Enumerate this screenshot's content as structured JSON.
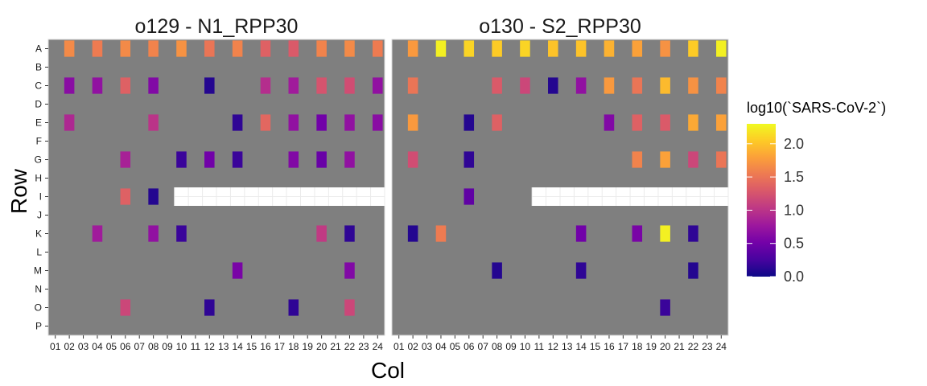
{
  "chart_data": {
    "type": "heatmap",
    "xlabel": "Col",
    "ylabel": "Row",
    "legend_title": "log10(`SARS-CoV-2`)",
    "legend_position": "right",
    "color_scale": {
      "name": "plasma",
      "range": [
        0,
        2.3
      ],
      "breaks": [
        "0.0",
        "0.5",
        "1.0",
        "1.5",
        "2.0"
      ],
      "break_values": [
        0,
        0.5,
        1.0,
        1.5,
        2.0
      ],
      "stops": [
        "#0d0887",
        "#47039f",
        "#7301a8",
        "#9c179e",
        "#bd3786",
        "#d8576b",
        "#ed7953",
        "#fb9f3a",
        "#fdca26",
        "#f0f921"
      ]
    },
    "colors": {
      "panel_background": "#7f7f7f",
      "empty_wells": "#ffffff"
    },
    "rows": [
      "A",
      "B",
      "C",
      "D",
      "E",
      "F",
      "G",
      "H",
      "I",
      "J",
      "K",
      "L",
      "M",
      "N",
      "O",
      "P"
    ],
    "cols": [
      "01",
      "02",
      "03",
      "04",
      "05",
      "06",
      "07",
      "08",
      "09",
      "10",
      "11",
      "12",
      "13",
      "14",
      "15",
      "16",
      "17",
      "18",
      "19",
      "20",
      "21",
      "22",
      "23",
      "24"
    ],
    "panels": [
      {
        "title": "o129 - N1_RPP30",
        "empty_cells": {
          "row": "I",
          "cols": [
            "10",
            "11",
            "12",
            "13",
            "14",
            "15",
            "16",
            "17",
            "18",
            "19",
            "20",
            "21",
            "22",
            "23",
            "24"
          ]
        },
        "cells": [
          {
            "row": "A",
            "col": "02",
            "value": 1.65
          },
          {
            "row": "A",
            "col": "04",
            "value": 1.55
          },
          {
            "row": "A",
            "col": "06",
            "value": 1.65
          },
          {
            "row": "A",
            "col": "08",
            "value": 1.6
          },
          {
            "row": "A",
            "col": "10",
            "value": 1.7
          },
          {
            "row": "A",
            "col": "12",
            "value": 1.5
          },
          {
            "row": "A",
            "col": "14",
            "value": 1.6
          },
          {
            "row": "A",
            "col": "16",
            "value": 1.35
          },
          {
            "row": "A",
            "col": "18",
            "value": 1.3
          },
          {
            "row": "A",
            "col": "20",
            "value": 1.6
          },
          {
            "row": "A",
            "col": "22",
            "value": 1.65
          },
          {
            "row": "A",
            "col": "24",
            "value": 1.55
          },
          {
            "row": "C",
            "col": "02",
            "value": 0.65
          },
          {
            "row": "C",
            "col": "04",
            "value": 0.7
          },
          {
            "row": "C",
            "col": "06",
            "value": 1.35
          },
          {
            "row": "C",
            "col": "08",
            "value": 0.6
          },
          {
            "row": "C",
            "col": "12",
            "value": 0.1
          },
          {
            "row": "C",
            "col": "16",
            "value": 0.95
          },
          {
            "row": "C",
            "col": "18",
            "value": 0.8
          },
          {
            "row": "C",
            "col": "20",
            "value": 1.25
          },
          {
            "row": "C",
            "col": "22",
            "value": 1.2
          },
          {
            "row": "C",
            "col": "24",
            "value": 0.7
          },
          {
            "row": "E",
            "col": "02",
            "value": 0.9
          },
          {
            "row": "E",
            "col": "08",
            "value": 1.0
          },
          {
            "row": "E",
            "col": "14",
            "value": 0.15
          },
          {
            "row": "E",
            "col": "16",
            "value": 1.4
          },
          {
            "row": "E",
            "col": "18",
            "value": 0.7
          },
          {
            "row": "E",
            "col": "20",
            "value": 0.5
          },
          {
            "row": "E",
            "col": "22",
            "value": 0.7
          },
          {
            "row": "E",
            "col": "24",
            "value": 0.65
          },
          {
            "row": "G",
            "col": "06",
            "value": 0.85
          },
          {
            "row": "G",
            "col": "10",
            "value": 0.2
          },
          {
            "row": "G",
            "col": "12",
            "value": 0.5
          },
          {
            "row": "G",
            "col": "14",
            "value": 0.2
          },
          {
            "row": "G",
            "col": "18",
            "value": 0.6
          },
          {
            "row": "G",
            "col": "20",
            "value": 0.45
          },
          {
            "row": "G",
            "col": "22",
            "value": 0.7
          },
          {
            "row": "I",
            "col": "06",
            "value": 1.35
          },
          {
            "row": "I",
            "col": "08",
            "value": 0.1
          },
          {
            "row": "K",
            "col": "04",
            "value": 0.8
          },
          {
            "row": "K",
            "col": "08",
            "value": 0.7
          },
          {
            "row": "K",
            "col": "10",
            "value": 0.2
          },
          {
            "row": "K",
            "col": "20",
            "value": 1.05
          },
          {
            "row": "K",
            "col": "22",
            "value": 0.15
          },
          {
            "row": "M",
            "col": "14",
            "value": 0.55
          },
          {
            "row": "M",
            "col": "22",
            "value": 0.6
          },
          {
            "row": "O",
            "col": "06",
            "value": 1.15
          },
          {
            "row": "O",
            "col": "12",
            "value": 0.15
          },
          {
            "row": "O",
            "col": "18",
            "value": 0.15
          },
          {
            "row": "O",
            "col": "22",
            "value": 1.15
          }
        ]
      },
      {
        "title": "o130 - S2_RPP30",
        "empty_cells": {
          "row": "I",
          "cols": [
            "11",
            "12",
            "13",
            "14",
            "15",
            "16",
            "17",
            "18",
            "19",
            "20",
            "21",
            "22",
            "23",
            "24"
          ]
        },
        "cells": [
          {
            "row": "A",
            "col": "02",
            "value": 1.75
          },
          {
            "row": "A",
            "col": "04",
            "value": 2.25
          },
          {
            "row": "A",
            "col": "06",
            "value": 2.1
          },
          {
            "row": "A",
            "col": "08",
            "value": 2.05
          },
          {
            "row": "A",
            "col": "10",
            "value": 2.1
          },
          {
            "row": "A",
            "col": "12",
            "value": 2.0
          },
          {
            "row": "A",
            "col": "14",
            "value": 2.0
          },
          {
            "row": "A",
            "col": "16",
            "value": 1.9
          },
          {
            "row": "A",
            "col": "18",
            "value": 1.8
          },
          {
            "row": "A",
            "col": "20",
            "value": 1.7
          },
          {
            "row": "A",
            "col": "22",
            "value": 2.05
          },
          {
            "row": "A",
            "col": "24",
            "value": 2.25
          },
          {
            "row": "C",
            "col": "02",
            "value": 1.5
          },
          {
            "row": "C",
            "col": "08",
            "value": 1.3
          },
          {
            "row": "C",
            "col": "10",
            "value": 1.15
          },
          {
            "row": "C",
            "col": "12",
            "value": 0.1
          },
          {
            "row": "C",
            "col": "14",
            "value": 0.7
          },
          {
            "row": "C",
            "col": "16",
            "value": 1.75
          },
          {
            "row": "C",
            "col": "18",
            "value": 1.5
          },
          {
            "row": "C",
            "col": "20",
            "value": 1.95
          },
          {
            "row": "C",
            "col": "22",
            "value": 1.7
          },
          {
            "row": "C",
            "col": "24",
            "value": 1.6
          },
          {
            "row": "E",
            "col": "02",
            "value": 1.75
          },
          {
            "row": "E",
            "col": "06",
            "value": 0.1
          },
          {
            "row": "E",
            "col": "08",
            "value": 1.35
          },
          {
            "row": "E",
            "col": "16",
            "value": 0.6
          },
          {
            "row": "E",
            "col": "18",
            "value": 1.35
          },
          {
            "row": "E",
            "col": "20",
            "value": 1.3
          },
          {
            "row": "E",
            "col": "22",
            "value": 1.85
          },
          {
            "row": "E",
            "col": "24",
            "value": 1.8
          },
          {
            "row": "G",
            "col": "02",
            "value": 1.2
          },
          {
            "row": "G",
            "col": "06",
            "value": 0.15
          },
          {
            "row": "G",
            "col": "18",
            "value": 1.6
          },
          {
            "row": "G",
            "col": "20",
            "value": 1.8
          },
          {
            "row": "G",
            "col": "22",
            "value": 1.15
          },
          {
            "row": "G",
            "col": "24",
            "value": 1.5
          },
          {
            "row": "I",
            "col": "06",
            "value": 0.4
          },
          {
            "row": "K",
            "col": "02",
            "value": 0.1
          },
          {
            "row": "K",
            "col": "04",
            "value": 1.55
          },
          {
            "row": "K",
            "col": "14",
            "value": 0.5
          },
          {
            "row": "K",
            "col": "18",
            "value": 0.55
          },
          {
            "row": "K",
            "col": "20",
            "value": 2.25
          },
          {
            "row": "K",
            "col": "22",
            "value": 0.15
          },
          {
            "row": "M",
            "col": "08",
            "value": 0.1
          },
          {
            "row": "M",
            "col": "14",
            "value": 0.15
          },
          {
            "row": "M",
            "col": "22",
            "value": 0.1
          },
          {
            "row": "O",
            "col": "20",
            "value": 0.2
          }
        ]
      }
    ]
  }
}
